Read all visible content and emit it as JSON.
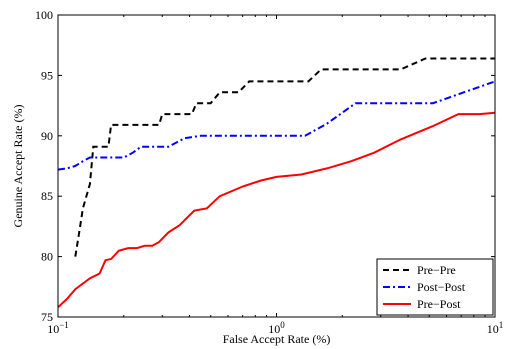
{
  "chart_data": {
    "type": "line",
    "title": "",
    "xlabel": "False Accept Rate (%)",
    "ylabel": "Genuine Accept Rate (%)",
    "xscale": "log",
    "xlim": [
      0.1,
      10
    ],
    "ylim": [
      75,
      100
    ],
    "x_ticks": [
      {
        "value": 0.1,
        "base": "10",
        "exp": "−1"
      },
      {
        "value": 1,
        "base": "10",
        "exp": "0"
      },
      {
        "value": 10,
        "base": "10",
        "exp": "1"
      }
    ],
    "y_ticks": [
      75,
      80,
      85,
      90,
      95,
      100
    ],
    "grid": false,
    "legend": {
      "position": "bottom-right"
    },
    "series": [
      {
        "name": "Pre−Pre",
        "color": "#000000",
        "style": "dashed",
        "points": [
          [
            0.12,
            80.0
          ],
          [
            0.125,
            82.0
          ],
          [
            0.13,
            84.0
          ],
          [
            0.14,
            86.0
          ],
          [
            0.145,
            89.1
          ],
          [
            0.17,
            89.1
          ],
          [
            0.175,
            90.9
          ],
          [
            0.29,
            90.9
          ],
          [
            0.3,
            91.8
          ],
          [
            0.41,
            91.8
          ],
          [
            0.43,
            92.7
          ],
          [
            0.5,
            92.7
          ],
          [
            0.55,
            93.6
          ],
          [
            0.67,
            93.6
          ],
          [
            0.75,
            94.5
          ],
          [
            1.4,
            94.5
          ],
          [
            1.6,
            95.5
          ],
          [
            3.7,
            95.5
          ],
          [
            4.8,
            96.4
          ],
          [
            10,
            96.4
          ]
        ]
      },
      {
        "name": "Post−Post",
        "color": "#0000ff",
        "style": "dashdot",
        "points": [
          [
            0.1,
            87.2
          ],
          [
            0.11,
            87.3
          ],
          [
            0.12,
            87.5
          ],
          [
            0.13,
            87.9
          ],
          [
            0.14,
            88.2
          ],
          [
            0.2,
            88.2
          ],
          [
            0.22,
            88.6
          ],
          [
            0.24,
            89.1
          ],
          [
            0.32,
            89.1
          ],
          [
            0.38,
            89.8
          ],
          [
            0.45,
            90.0
          ],
          [
            1.35,
            90.0
          ],
          [
            1.7,
            91.0
          ],
          [
            2.3,
            92.7
          ],
          [
            5.2,
            92.7
          ],
          [
            10,
            94.5
          ]
        ]
      },
      {
        "name": "Pre−Post",
        "color": "#ff0000",
        "style": "solid",
        "points": [
          [
            0.1,
            75.8
          ],
          [
            0.11,
            76.5
          ],
          [
            0.12,
            77.3
          ],
          [
            0.14,
            78.2
          ],
          [
            0.155,
            78.6
          ],
          [
            0.165,
            79.7
          ],
          [
            0.175,
            79.8
          ],
          [
            0.19,
            80.5
          ],
          [
            0.21,
            80.7
          ],
          [
            0.23,
            80.7
          ],
          [
            0.25,
            80.9
          ],
          [
            0.27,
            80.9
          ],
          [
            0.29,
            81.2
          ],
          [
            0.32,
            82.0
          ],
          [
            0.36,
            82.6
          ],
          [
            0.42,
            83.8
          ],
          [
            0.48,
            84.0
          ],
          [
            0.55,
            85.0
          ],
          [
            0.7,
            85.8
          ],
          [
            0.85,
            86.3
          ],
          [
            1.0,
            86.6
          ],
          [
            1.3,
            86.8
          ],
          [
            1.7,
            87.3
          ],
          [
            2.2,
            87.9
          ],
          [
            2.8,
            88.6
          ],
          [
            3.7,
            89.7
          ],
          [
            5.2,
            90.8
          ],
          [
            6.8,
            91.8
          ],
          [
            8.5,
            91.8
          ],
          [
            10,
            91.9
          ]
        ]
      }
    ]
  }
}
